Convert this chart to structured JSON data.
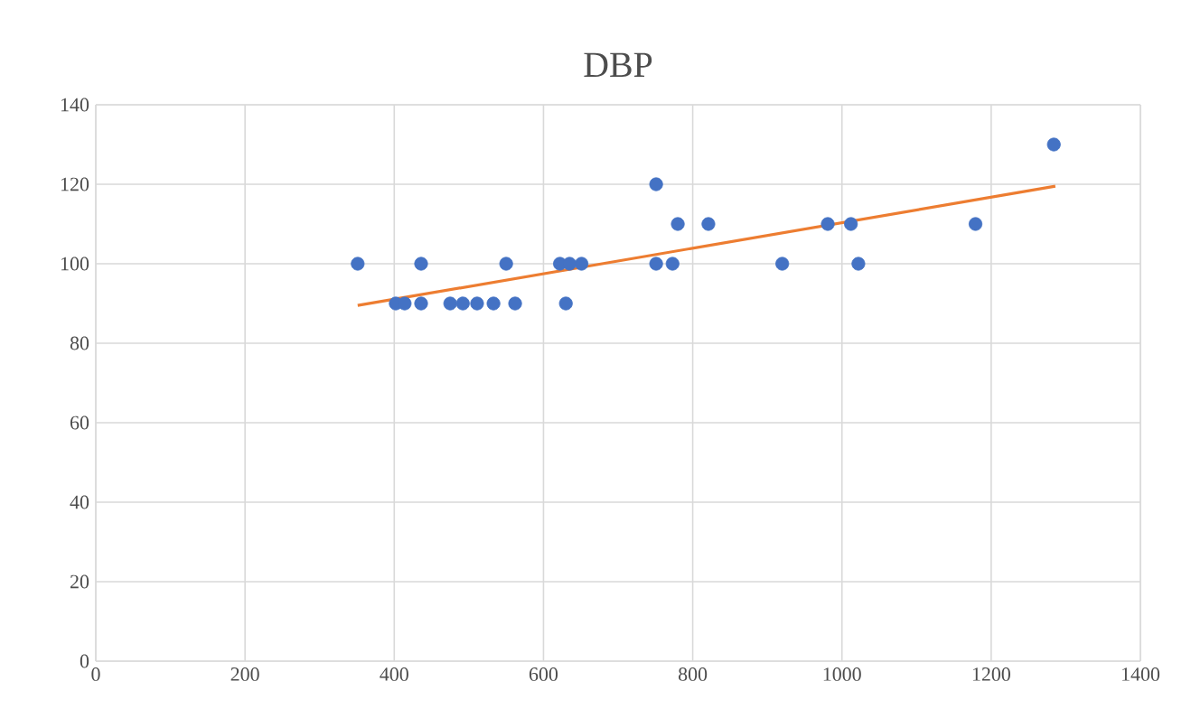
{
  "chart_data": {
    "type": "scatter",
    "title": "DBP",
    "xlim": [
      0,
      1400
    ],
    "ylim": [
      0,
      140
    ],
    "xticks": [
      0,
      200,
      400,
      600,
      800,
      1000,
      1200,
      1400
    ],
    "yticks": [
      0,
      20,
      40,
      60,
      80,
      100,
      120,
      140
    ],
    "grid": true,
    "series": [
      {
        "color": "#4472c4",
        "marker": "circle",
        "x": [
          351,
          402,
          414,
          436,
          436,
          475,
          492,
          511,
          533,
          550,
          562,
          622,
          630,
          635,
          651,
          751,
          751,
          773,
          780,
          821,
          920,
          981,
          1012,
          1022,
          1179,
          1284
        ],
        "values": [
          100,
          90,
          90,
          100,
          90,
          90,
          90,
          90,
          90,
          100,
          90,
          100,
          90,
          100,
          100,
          120,
          100,
          100,
          110,
          110,
          100,
          110,
          110,
          100,
          110,
          130
        ]
      },
      {
        "type": "line",
        "color": "#ed7d31",
        "marker": "none",
        "x": [
          351,
          1286
        ],
        "values": [
          89.5,
          119.5
        ]
      }
    ]
  }
}
